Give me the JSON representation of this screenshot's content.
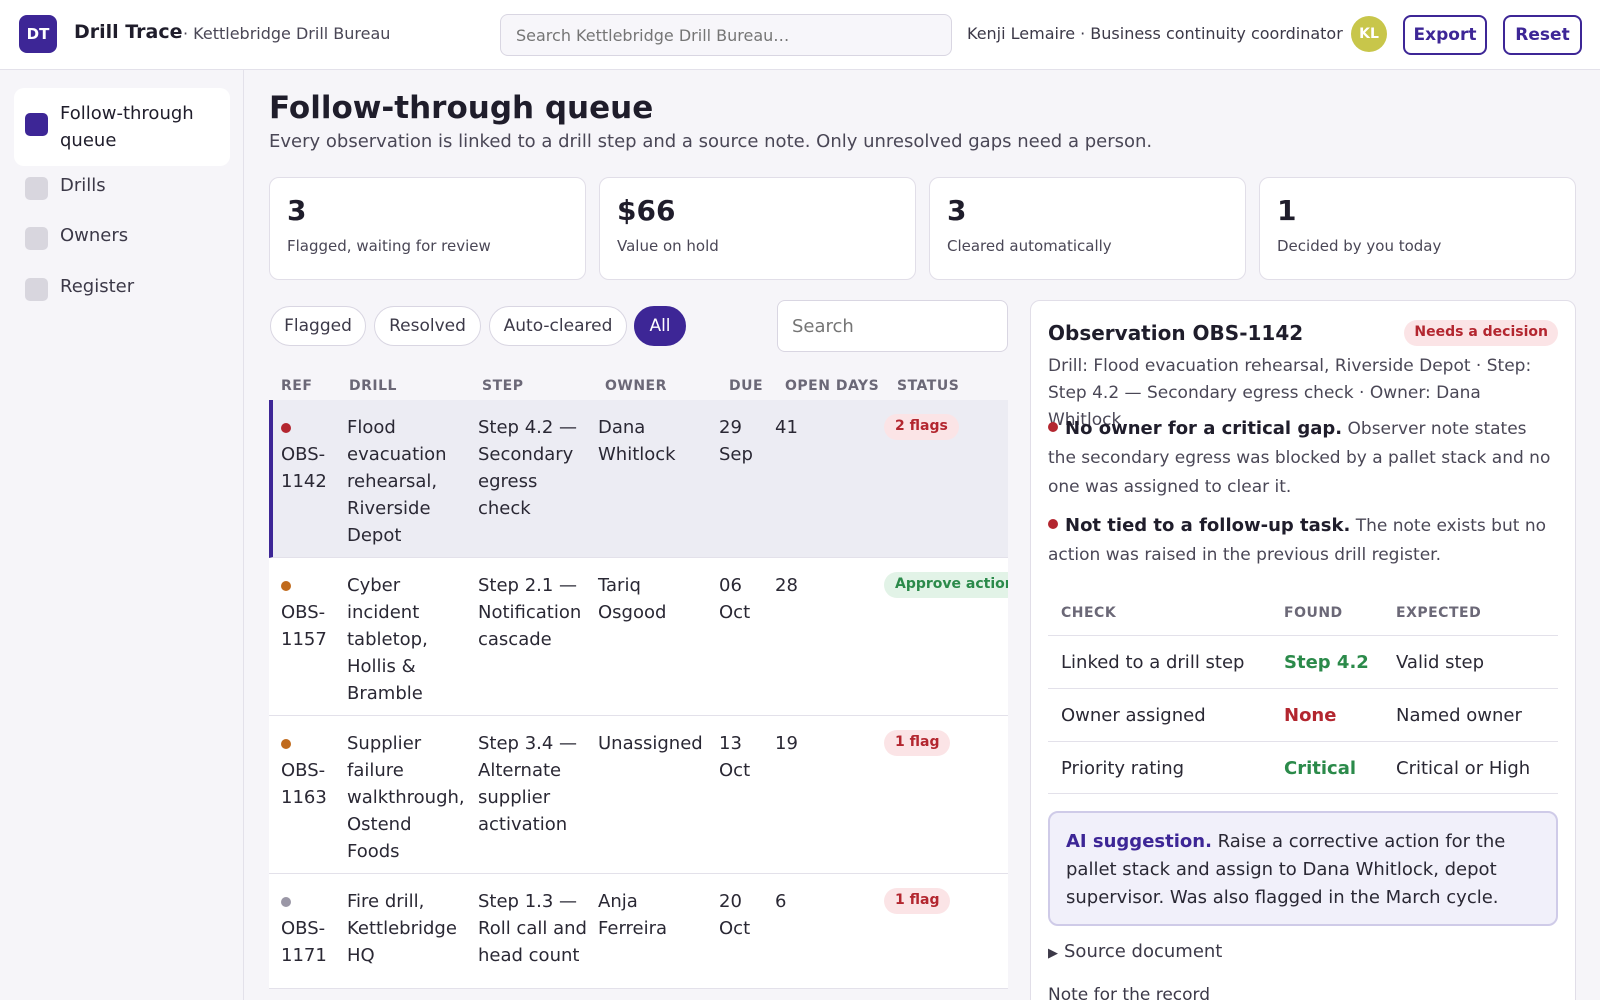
{
  "header": {
    "logo": "DT",
    "app_name": "Drill Trace",
    "org": "· Kettlebridge Drill Bureau",
    "search_placeholder": "Search Kettlebridge Drill Bureau…",
    "user": "Kenji Lemaire · Business continuity coordinator",
    "avatar": "KL",
    "export_label": "Export",
    "reset_label": "Reset"
  },
  "sidebar": {
    "items": [
      {
        "label": "Follow-through queue",
        "active": true
      },
      {
        "label": "Drills"
      },
      {
        "label": "Owners"
      },
      {
        "label": "Register"
      }
    ]
  },
  "main": {
    "title": "Follow-through queue",
    "subtitle": "Every observation is linked to a drill step and a source note. Only unresolved gaps need a person.",
    "stats": [
      {
        "value": "3",
        "label": "Flagged, waiting for review"
      },
      {
        "value": "$66",
        "label": "Value on hold"
      },
      {
        "value": "3",
        "label": "Cleared automatically"
      },
      {
        "value": "1",
        "label": "Decided by you today"
      }
    ],
    "filters": [
      "Flagged",
      "Resolved",
      "Auto-cleared",
      "All"
    ],
    "active_filter": "All",
    "search_placeholder": "Search"
  },
  "table": {
    "headers": [
      "REF",
      "DRILL",
      "STEP",
      "OWNER",
      "DUE",
      "OPEN DAYS",
      "STATUS"
    ],
    "rows": [
      {
        "ref": "OBS-\n1142",
        "drill": "Flood\nevacuation\nrehearsal,\nRiverside\nDepot",
        "step": "Step 4.2 —\nSecondary\negress\ncheck",
        "owner": "Dana\nWhitlock",
        "due": "29\nSep",
        "open": "41",
        "status": "2 flags",
        "status_color": "red",
        "dot": "#b3262f"
      },
      {
        "ref": "OBS-\n1157",
        "drill": "Cyber\nincident\ntabletop,\nHollis &\nBramble",
        "step": "Step 2.1 —\nNotification\ncascade",
        "owner": "Tariq\nOsgood",
        "due": "06\nOct",
        "open": "28",
        "status": "Approve action",
        "status_color": "green",
        "dot": "#c06a1c"
      },
      {
        "ref": "OBS-\n1163",
        "drill": "Supplier\nfailure\nwalkthrough,\nOstend\nFoods",
        "step": "Step 3.4 —\nAlternate\nsupplier\nactivation",
        "owner": "Unassigned",
        "due": "13\nOct",
        "open": "19",
        "status": "1 flag",
        "status_color": "red",
        "dot": "#c06a1c"
      },
      {
        "ref": "OBS-\n1171",
        "drill": "Fire drill,\nKettlebridge\nHQ",
        "step": "Step 1.3 —\nRoll call and\nhead count",
        "owner": "Anja\nFerreira",
        "due": "20\nOct",
        "open": "6",
        "status": "1 flag",
        "status_color": "red",
        "dot": "#9a97a6"
      }
    ]
  },
  "detail": {
    "title": "Observation OBS-1142",
    "badge": "Needs a decision",
    "meta": "Drill: Flood evacuation rehearsal, Riverside Depot · Step: Step 4.2 — Secondary egress check · Owner: Dana Whitlock",
    "issues": [
      {
        "title": "No owner for a critical gap.",
        "text": " Observer note states the secondary egress was blocked by a pallet stack and no one was assigned to clear it."
      },
      {
        "title": "Not tied to a follow-up task.",
        "text": " The note exists but no action was raised in the previous drill register."
      }
    ],
    "check_headers": [
      "CHECK",
      "FOUND",
      "EXPECTED"
    ],
    "checks": [
      {
        "check": "Linked to a drill step",
        "found": "Step 4.2",
        "found_color": "green",
        "expected": "Valid step"
      },
      {
        "check": "Owner assigned",
        "found": "None",
        "found_color": "red",
        "expected": "Named owner"
      },
      {
        "check": "Priority rating",
        "found": "Critical",
        "found_color": "green",
        "expected": "Critical or High"
      }
    ],
    "ai_label": "AI suggestion.",
    "ai_text": " Raise a corrective action for the pallet stack and assign to Dana Whitlock, depot supervisor. Was also flagged in the March cycle.",
    "source_label": "Source document",
    "note_label": "Note for the record"
  }
}
